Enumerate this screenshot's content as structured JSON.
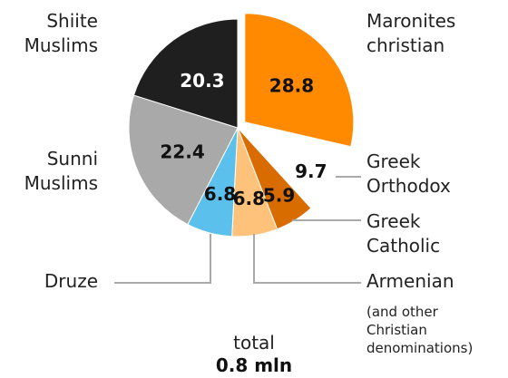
{
  "chart_data": {
    "type": "pie",
    "slices": [
      {
        "label_line1": "Maronites",
        "label_line2": "christian",
        "value": 28.8,
        "value_text": "28.8",
        "color": "#ff8a00",
        "value_color": "#111111"
      },
      {
        "label_line1": "Greek",
        "label_line2": "Orthodox",
        "value": 9.7,
        "value_text": "9.7",
        "color": "#ffffff",
        "value_color": "#111111"
      },
      {
        "label_line1": "Greek",
        "label_line2": "Catholic",
        "value": 5.9,
        "value_text": "5.9",
        "color": "#d96c00",
        "value_color": "#111111"
      },
      {
        "label_line1": "Armenian",
        "label_line2": "",
        "value": 6.8,
        "value_text": "6.8",
        "color": "#ffc27a",
        "value_color": "#111111"
      },
      {
        "label_line1": "Druze",
        "label_line2": "",
        "value": 6.8,
        "value_text": "6.8",
        "color": "#5bc0eb",
        "value_color": "#111111"
      },
      {
        "label_line1": "Sunni",
        "label_line2": "Muslims",
        "value": 22.4,
        "value_text": "22.4",
        "color": "#a9a9a9",
        "value_color": "#111111"
      },
      {
        "label_line1": "Shiite",
        "label_line2": "Muslims",
        "value": 20.3,
        "value_text": "20.3",
        "color": "#1f1f1f",
        "value_color": "#ffffff"
      }
    ],
    "note_lines": [
      "(and other",
      "Christian",
      "denominations)"
    ],
    "total_label": "total",
    "total_value": "0.8 mln",
    "leader_color": "#aaaaaa"
  }
}
